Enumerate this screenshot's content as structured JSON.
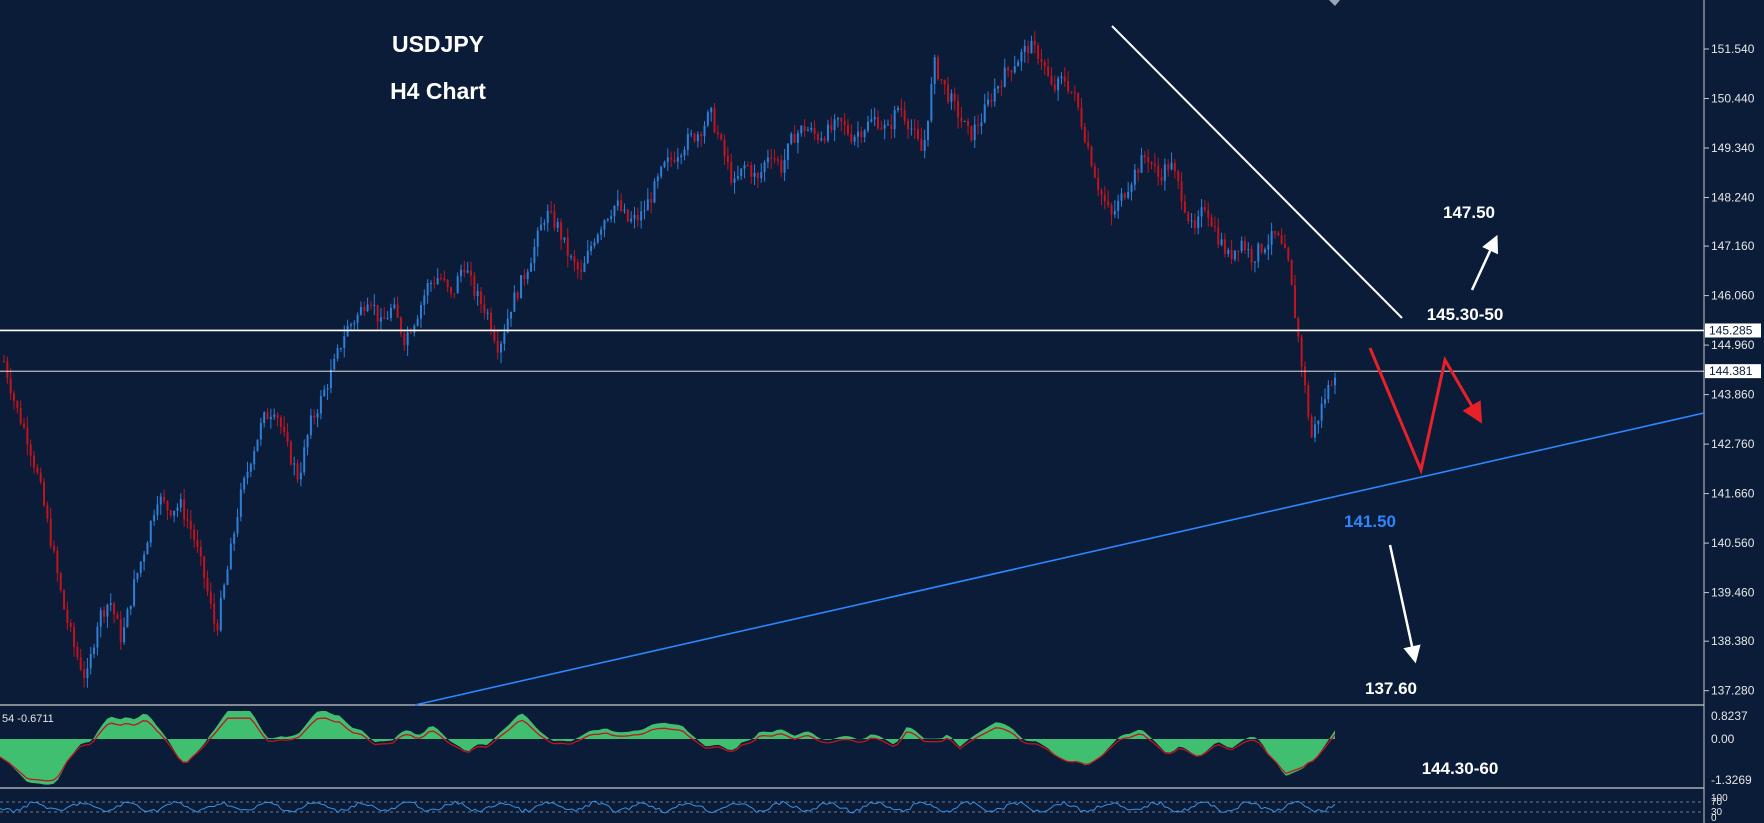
{
  "chart_data": {
    "type": "candlestick",
    "symbol": "USDJPY",
    "title": "USDJPY",
    "subtitle": "H4 Chart",
    "colors": {
      "background": "#0a1c38",
      "bull": "#2f7fd6",
      "bear": "#c0141e",
      "text": "#ffffff",
      "support_line": "#2e86ff",
      "resistance_line": "#ffffff",
      "projection": "#e8202a",
      "macd_hist": "#3fbf6f",
      "macd_signal": "#c0141e",
      "stoch_line": "#3a8fe0"
    },
    "price_axis": {
      "ticks": [
        "151.540",
        "150.440",
        "149.340",
        "148.240",
        "147.160",
        "146.060",
        "144.960",
        "143.860",
        "142.760",
        "141.660",
        "140.560",
        "139.460",
        "138.380",
        "137.280"
      ],
      "range": [
        136.75,
        152.1
      ]
    },
    "price_tags": [
      {
        "label": "145.285",
        "price": 145.285
      },
      {
        "label": "144.381",
        "price": 144.381
      }
    ],
    "ohlc_close_path": [
      144.6,
      143.6,
      142.9,
      141.9,
      140.6,
      139.2,
      138.2,
      137.5,
      138.9,
      139.3,
      138.4,
      139.6,
      140.5,
      141.6,
      141.3,
      141.4,
      140.8,
      139.8,
      138.6,
      140.0,
      141.5,
      142.5,
      143.3,
      143.6,
      142.7,
      142.0,
      143.2,
      143.8,
      144.5,
      145.3,
      145.6,
      146.1,
      145.4,
      145.8,
      145.1,
      145.6,
      146.3,
      146.5,
      146.0,
      146.8,
      146.1,
      145.7,
      144.9,
      145.8,
      146.4,
      147.1,
      147.9,
      147.6,
      146.9,
      146.5,
      147.3,
      147.8,
      148.1,
      147.7,
      147.8,
      148.3,
      148.9,
      149.2,
      149.5,
      149.7,
      150.1,
      149.3,
      148.5,
      149.0,
      148.6,
      149.3,
      148.9,
      149.6,
      149.8,
      149.6,
      149.7,
      149.9,
      149.6,
      149.8,
      150.0,
      149.7,
      150.3,
      149.8,
      149.2,
      151.2,
      150.6,
      150.1,
      149.6,
      150.0,
      150.6,
      151.0,
      151.3,
      151.6,
      151.4,
      150.6,
      150.9,
      150.4,
      149.4,
      148.4,
      147.8,
      148.3,
      148.8,
      149.2,
      148.7,
      149.0,
      148.3,
      147.4,
      148.1,
      147.4,
      146.9,
      147.3,
      146.9,
      147.2,
      147.4,
      146.8,
      144.9,
      142.9,
      143.7,
      144.4
    ],
    "trendlines": [
      {
        "name": "resistance",
        "from": [
          0,
          151.7
        ],
        "to": [
          1,
          146.0
        ]
      },
      {
        "name": "support",
        "from": [
          0,
          136.9
        ],
        "to": [
          1,
          143.1
        ]
      }
    ],
    "horizontal_lines": [
      145.285,
      144.381
    ],
    "annotations": {
      "upper_target": "147.50",
      "resistance_zone": "145.30-50",
      "support_level": "141.50",
      "lower_target": "137.60",
      "pivot_zone": "144.30-60"
    },
    "macd": {
      "readout": "54 -0.6711",
      "ticks": [
        "0.8237",
        "0.00",
        "-1.3269"
      ]
    },
    "stochastic": {
      "ticks": [
        "100",
        "70",
        "30",
        "0"
      ]
    }
  }
}
